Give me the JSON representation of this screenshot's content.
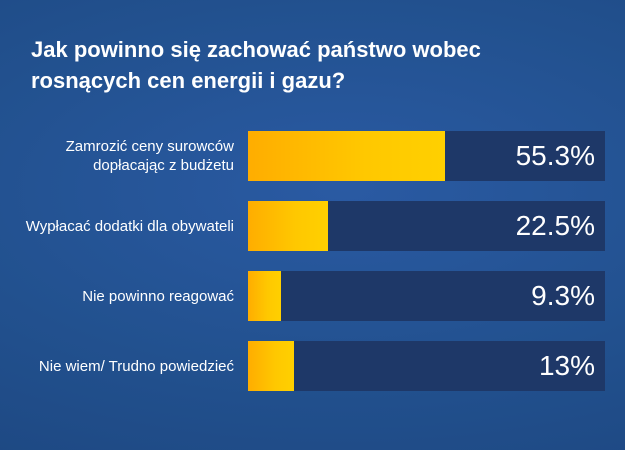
{
  "chart_data": {
    "type": "bar",
    "orientation": "horizontal",
    "title": "Jak powinno się zachować państwo wobec rosnących cen energii i gazu?",
    "categories": [
      "Zamrozić ceny surowców dopłacając z budżetu",
      "Wypłacać dodatki dla obywateli",
      "Nie powinno reagować",
      "Nie wiem/ Trudno powiedzieć"
    ],
    "values": [
      55.3,
      22.5,
      9.3,
      13
    ],
    "value_labels": [
      "55.3%",
      "22.5%",
      "9.3%",
      "13%"
    ],
    "xlim": [
      0,
      100
    ],
    "grid": false,
    "legend": "none",
    "colors": {
      "bar": "#ffc000",
      "track": "#1e3868",
      "background": "#22518f",
      "text": "#ffffff"
    }
  }
}
